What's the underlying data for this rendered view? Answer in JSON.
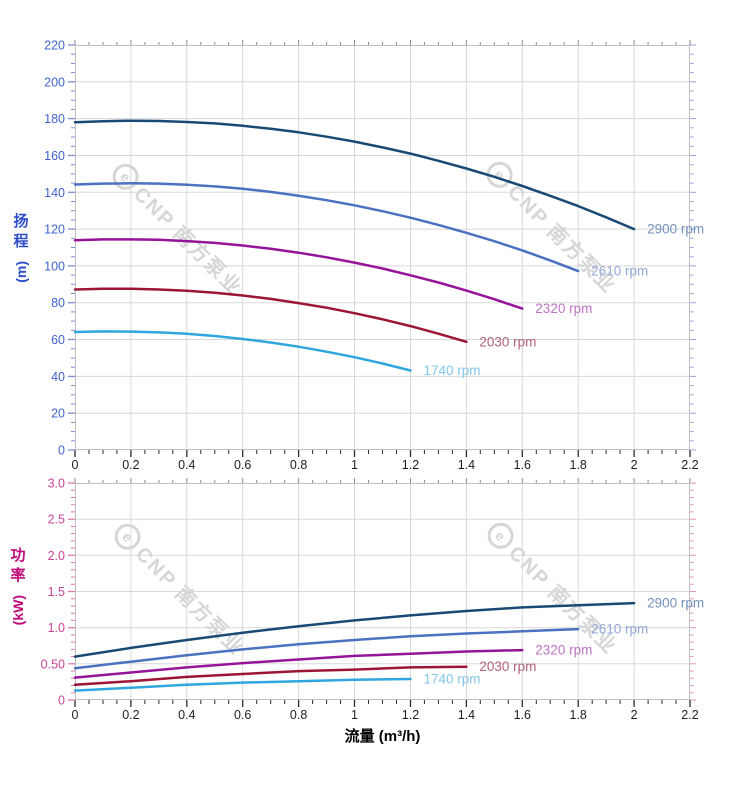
{
  "watermark": {
    "logo_letter": "e",
    "text": "CNP 南方泵业"
  },
  "x_axis_title": "流量 (m³/h)",
  "chart_data": [
    {
      "id": "head",
      "type": "line",
      "x": {
        "min": 0,
        "max": 2.2,
        "major_step": 0.2,
        "minor_step": 0.05,
        "tick_labels": [
          "0",
          "0.2",
          "0.4",
          "0.6",
          "0.8",
          "1",
          "1.2",
          "1.4",
          "1.6",
          "1.8",
          "2",
          "2.2"
        ]
      },
      "y": {
        "min": 0,
        "max": 220,
        "major_step": 20,
        "minor_step": 5,
        "tick_labels": [
          "0",
          "20",
          "40",
          "60",
          "80",
          "100",
          "120",
          "140",
          "160",
          "180",
          "200",
          "220"
        ],
        "title": "扬程",
        "unit": "(m)",
        "tick_color": "#4263cf",
        "tick_mark_color": "#7b8ed8"
      },
      "grid": true,
      "series": [
        {
          "name": "2900 rpm",
          "color": "#194a75",
          "label_color": "#7492ba",
          "points": [
            [
              0,
              178
            ],
            [
              0.1,
              178.6
            ],
            [
              0.2,
              178.9
            ],
            [
              0.3,
              178.7
            ],
            [
              0.4,
              178.2
            ],
            [
              0.5,
              177.4
            ],
            [
              0.6,
              176.1
            ],
            [
              0.7,
              174.5
            ],
            [
              0.8,
              172.6
            ],
            [
              0.9,
              170.2
            ],
            [
              1,
              167.5
            ],
            [
              1.1,
              164.4
            ],
            [
              1.2,
              161
            ],
            [
              1.3,
              157.1
            ],
            [
              1.4,
              152.9
            ],
            [
              1.5,
              148.4
            ],
            [
              1.6,
              143.4
            ],
            [
              1.7,
              138.1
            ],
            [
              1.8,
              132.5
            ],
            [
              1.9,
              126.4
            ],
            [
              2,
              120
            ]
          ]
        },
        {
          "name": "2610 rpm",
          "color": "#4b71c1",
          "label_color": "#90a8d6",
          "points": [
            [
              0,
              144.2
            ],
            [
              0.1,
              144.7
            ],
            [
              0.2,
              144.9
            ],
            [
              0.3,
              144.7
            ],
            [
              0.4,
              144.1
            ],
            [
              0.5,
              143.2
            ],
            [
              0.6,
              141.9
            ],
            [
              0.7,
              140.2
            ],
            [
              0.8,
              138.1
            ],
            [
              0.9,
              135.7
            ],
            [
              1,
              132.9
            ],
            [
              1.1,
              129.7
            ],
            [
              1.2,
              126.2
            ],
            [
              1.3,
              122.3
            ],
            [
              1.4,
              118
            ],
            [
              1.5,
              113.4
            ],
            [
              1.6,
              108.4
            ],
            [
              1.7,
              103
            ],
            [
              1.8,
              97.2
            ]
          ]
        },
        {
          "name": "2320 rpm",
          "color": "#961499",
          "label_color": "#bd74c3",
          "points": [
            [
              0,
              113.9
            ],
            [
              0.1,
              114.4
            ],
            [
              0.2,
              114.4
            ],
            [
              0.3,
              114.2
            ],
            [
              0.4,
              113.5
            ],
            [
              0.5,
              112.5
            ],
            [
              0.6,
              111.1
            ],
            [
              0.7,
              109.3
            ],
            [
              0.8,
              107.2
            ],
            [
              0.9,
              104.7
            ],
            [
              1,
              101.8
            ],
            [
              1.1,
              98.6
            ],
            [
              1.2,
              94.9
            ],
            [
              1.3,
              91
            ],
            [
              1.4,
              86.6
            ],
            [
              1.5,
              81.9
            ],
            [
              1.6,
              76.8
            ]
          ]
        },
        {
          "name": "2030 rpm",
          "color": "#9c1535",
          "label_color": "#b2617c",
          "points": [
            [
              0,
              87.2
            ],
            [
              0.1,
              87.6
            ],
            [
              0.2,
              87.6
            ],
            [
              0.3,
              87.2
            ],
            [
              0.4,
              86.5
            ],
            [
              0.5,
              85.4
            ],
            [
              0.6,
              83.9
            ],
            [
              0.7,
              82.1
            ],
            [
              0.8,
              79.8
            ],
            [
              0.9,
              77.3
            ],
            [
              1,
              74.3
            ],
            [
              1.1,
              71
            ],
            [
              1.2,
              67.3
            ],
            [
              1.3,
              63.2
            ],
            [
              1.4,
              58.8
            ]
          ]
        },
        {
          "name": "1740 rpm",
          "color": "#2fa6de",
          "label_color": "#83c7ea",
          "points": [
            [
              0,
              64.1
            ],
            [
              0.1,
              64.4
            ],
            [
              0.2,
              64.3
            ],
            [
              0.3,
              63.9
            ],
            [
              0.4,
              63.1
            ],
            [
              0.5,
              61.9
            ],
            [
              0.6,
              60.3
            ],
            [
              0.7,
              58.4
            ],
            [
              0.8,
              56.1
            ],
            [
              0.9,
              53.4
            ],
            [
              1,
              50.4
            ],
            [
              1.1,
              47
            ],
            [
              1.2,
              43.2
            ]
          ]
        }
      ]
    },
    {
      "id": "power",
      "type": "line",
      "x": {
        "min": 0,
        "max": 2.2,
        "major_step": 0.2,
        "minor_step": 0.05,
        "tick_labels": [
          "0",
          "0.2",
          "0.4",
          "0.6",
          "0.8",
          "1",
          "1.2",
          "1.4",
          "1.6",
          "1.8",
          "2",
          "2.2"
        ]
      },
      "y": {
        "min": 0,
        "max": 3,
        "major_step": 0.5,
        "minor_step": 0.1,
        "tick_labels": [
          "0",
          "0.50",
          "1.0",
          "1.5",
          "2.0",
          "2.5",
          "3.0"
        ],
        "title": "功率",
        "unit": "(kW)",
        "tick_color": "#cb4397",
        "tick_mark_color": "#e077b4"
      },
      "grid": true,
      "series": [
        {
          "name": "2900 rpm",
          "color": "#194a75",
          "label_color": "#7492ba",
          "points": [
            [
              0,
              0.6
            ],
            [
              0.2,
              0.72
            ],
            [
              0.4,
              0.83
            ],
            [
              0.6,
              0.93
            ],
            [
              0.8,
              1.02
            ],
            [
              1,
              1.1
            ],
            [
              1.2,
              1.17
            ],
            [
              1.4,
              1.23
            ],
            [
              1.6,
              1.28
            ],
            [
              1.8,
              1.31
            ],
            [
              2,
              1.34
            ]
          ]
        },
        {
          "name": "2610 rpm",
          "color": "#4b71c1",
          "label_color": "#90a8d6",
          "points": [
            [
              0,
              0.44
            ],
            [
              0.2,
              0.53
            ],
            [
              0.4,
              0.62
            ],
            [
              0.6,
              0.7
            ],
            [
              0.8,
              0.77
            ],
            [
              1,
              0.83
            ],
            [
              1.2,
              0.88
            ],
            [
              1.4,
              0.92
            ],
            [
              1.6,
              0.95
            ],
            [
              1.8,
              0.98
            ]
          ]
        },
        {
          "name": "2320 rpm",
          "color": "#961499",
          "label_color": "#bd74c3",
          "points": [
            [
              0,
              0.31
            ],
            [
              0.2,
              0.38
            ],
            [
              0.4,
              0.45
            ],
            [
              0.6,
              0.51
            ],
            [
              0.8,
              0.56
            ],
            [
              1,
              0.61
            ],
            [
              1.2,
              0.64
            ],
            [
              1.4,
              0.67
            ],
            [
              1.6,
              0.69
            ]
          ]
        },
        {
          "name": "2030 rpm",
          "color": "#9c1535",
          "label_color": "#b2617c",
          "points": [
            [
              0,
              0.21
            ],
            [
              0.2,
              0.26
            ],
            [
              0.4,
              0.32
            ],
            [
              0.6,
              0.36
            ],
            [
              0.8,
              0.4
            ],
            [
              1,
              0.42
            ],
            [
              1.2,
              0.45
            ],
            [
              1.4,
              0.46
            ]
          ]
        },
        {
          "name": "1740 rpm",
          "color": "#2fa6de",
          "label_color": "#83c7ea",
          "points": [
            [
              0,
              0.13
            ],
            [
              0.2,
              0.17
            ],
            [
              0.4,
              0.21
            ],
            [
              0.6,
              0.24
            ],
            [
              0.8,
              0.26
            ],
            [
              1,
              0.28
            ],
            [
              1.2,
              0.29
            ]
          ]
        }
      ]
    }
  ],
  "style": {
    "grid_color": "#d8d8d8",
    "border_color": "#bfbfbf",
    "x_tick_color": "#2b2b2b",
    "x_tick_label_color": "#1f1f1f"
  }
}
